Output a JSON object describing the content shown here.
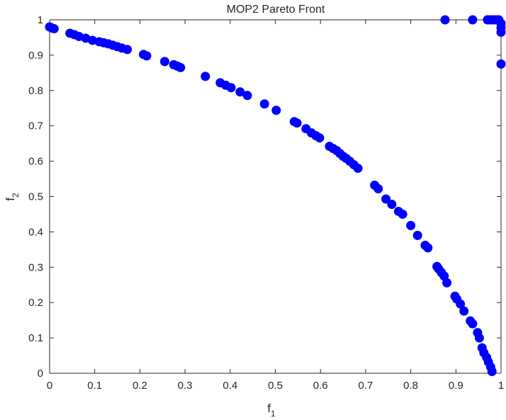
{
  "chart_data": {
    "type": "scatter",
    "title": "MOP2 Pareto Front",
    "xlabel": "f",
    "xlabel_subscript": "1",
    "ylabel": "f",
    "ylabel_subscript": "2",
    "xlim": [
      0,
      1
    ],
    "ylim": [
      0,
      1
    ],
    "grid": false,
    "box": true,
    "x_ticks": [
      "0",
      "0.1",
      "0.2",
      "0.3",
      "0.4",
      "0.5",
      "0.6",
      "0.7",
      "0.8",
      "0.9",
      "1"
    ],
    "y_ticks": [
      "0",
      "0.1",
      "0.2",
      "0.3",
      "0.4",
      "0.5",
      "0.6",
      "0.7",
      "0.8",
      "0.9",
      "1"
    ],
    "marker_color": "#0000ff",
    "series": [
      {
        "x": [
          0.0,
          0.005,
          0.01,
          0.045,
          0.055,
          0.065,
          0.08,
          0.095,
          0.11,
          0.12,
          0.13,
          0.14,
          0.15,
          0.16,
          0.172,
          0.208,
          0.215,
          0.255,
          0.275,
          0.283,
          0.29,
          0.345,
          0.378,
          0.39,
          0.402,
          0.422,
          0.438,
          0.476,
          0.502,
          0.542,
          0.548,
          0.568,
          0.58,
          0.59,
          0.598,
          0.62,
          0.628,
          0.636,
          0.643,
          0.65,
          0.657,
          0.665,
          0.674,
          0.683,
          0.72,
          0.728,
          0.745,
          0.758,
          0.773,
          0.782,
          0.8,
          0.815,
          0.832,
          0.838,
          0.858,
          0.862,
          0.868,
          0.874,
          0.88,
          0.898,
          0.902,
          0.91,
          0.918,
          0.932,
          0.937,
          0.948,
          0.952,
          0.958,
          0.962,
          0.968,
          0.972,
          0.977,
          0.98,
          0.876,
          0.937,
          0.97,
          0.975,
          0.98,
          0.985,
          0.99,
          0.995,
          1.0,
          1.0,
          1.0,
          1.0
        ],
        "y": [
          0.98,
          0.977,
          0.975,
          0.962,
          0.958,
          0.953,
          0.948,
          0.942,
          0.938,
          0.935,
          0.932,
          0.928,
          0.924,
          0.92,
          0.916,
          0.902,
          0.898,
          0.882,
          0.873,
          0.869,
          0.865,
          0.84,
          0.822,
          0.815,
          0.808,
          0.796,
          0.786,
          0.762,
          0.744,
          0.712,
          0.708,
          0.692,
          0.68,
          0.672,
          0.666,
          0.642,
          0.636,
          0.63,
          0.622,
          0.614,
          0.608,
          0.6,
          0.59,
          0.58,
          0.532,
          0.522,
          0.493,
          0.478,
          0.458,
          0.45,
          0.418,
          0.39,
          0.362,
          0.355,
          0.302,
          0.295,
          0.285,
          0.275,
          0.256,
          0.218,
          0.21,
          0.196,
          0.176,
          0.148,
          0.14,
          0.115,
          0.1,
          0.072,
          0.058,
          0.045,
          0.032,
          0.018,
          0.005,
          1.0,
          1.0,
          1.0,
          1.0,
          1.0,
          1.0,
          1.0,
          1.0,
          0.99,
          0.978,
          0.965,
          0.875
        ]
      }
    ]
  }
}
